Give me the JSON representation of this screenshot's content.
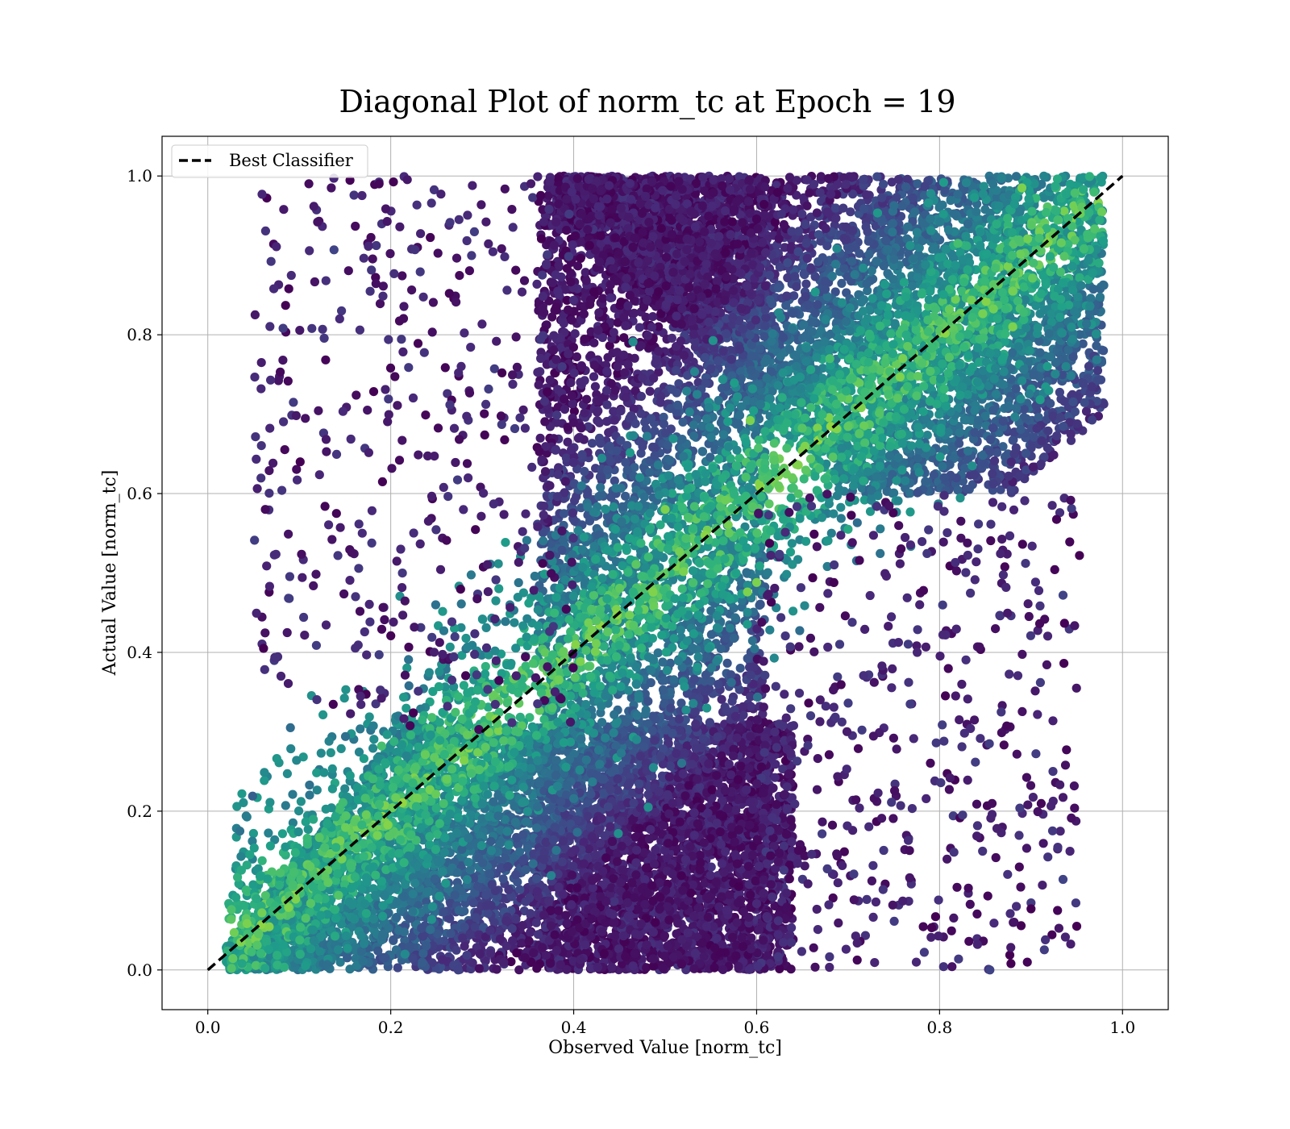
{
  "chart_data": {
    "type": "scatter",
    "title": "Diagonal Plot of norm_tc at Epoch = 19",
    "xlabel": "Observed Value [norm_tc]",
    "ylabel": "Actual Value [norm_tc]",
    "xlim": [
      -0.05,
      1.05
    ],
    "ylim": [
      -0.05,
      1.05
    ],
    "xticks": [
      0.0,
      0.2,
      0.4,
      0.6,
      0.8,
      1.0
    ],
    "yticks": [
      0.0,
      0.2,
      0.4,
      0.6,
      0.8,
      1.0
    ],
    "xtick_labels": [
      "0.0",
      "0.2",
      "0.4",
      "0.6",
      "0.8",
      "1.0"
    ],
    "ytick_labels": [
      "0.0",
      "0.2",
      "0.4",
      "0.6",
      "0.8",
      "1.0"
    ],
    "grid": true,
    "colormap": "viridis",
    "legend": {
      "location": "upper-left",
      "entries": [
        "Best Classifier"
      ]
    },
    "reference_line": {
      "name": "Best Classifier",
      "style": "dashed",
      "color": "#000000",
      "x": [
        0.0,
        1.0
      ],
      "y": [
        0.0,
        1.0
      ]
    },
    "density_summary": {
      "note_regions": [
        {
          "x_range": [
            0.02,
            0.6
          ],
          "y_range": [
            0.0,
            0.3
          ],
          "density": "very dense"
        },
        {
          "x_range": [
            0.4,
            0.98
          ],
          "y_range": [
            0.6,
            1.0
          ],
          "density": "very dense"
        },
        {
          "x_range": [
            0.4,
            0.6
          ],
          "y_range": [
            0.0,
            1.0
          ],
          "density": "dense band"
        }
      ]
    },
    "series": [
      {
        "kind": "scatter",
        "points_sample": [
          [
            0.085,
            0.837,
            0.0
          ],
          [
            0.075,
            0.911,
            0.1
          ],
          [
            0.12,
            0.942,
            0.05
          ],
          [
            0.138,
            0.907,
            0.2
          ],
          [
            0.135,
            0.985,
            0.05
          ],
          [
            0.081,
            0.604,
            0.15
          ],
          [
            0.088,
            0.549,
            0.05
          ],
          [
            0.101,
            0.64,
            0.0
          ],
          [
            0.061,
            0.405,
            0.0
          ],
          [
            0.049,
            0.219,
            0.3
          ],
          [
            0.068,
            0.211,
            0.5
          ],
          [
            0.08,
            0.37,
            0.1
          ],
          [
            0.95,
            0.055,
            0.0
          ],
          [
            0.9,
            0.077,
            0.0
          ],
          [
            0.935,
            0.114,
            0.2
          ],
          [
            0.957,
            0.739,
            0.2
          ],
          [
            0.935,
            0.472,
            0.2
          ],
          [
            0.953,
            0.522,
            0.0
          ],
          [
            0.878,
            0.008,
            0.0
          ],
          [
            0.855,
            0.0,
            0.2
          ],
          [
            0.6,
            0.488,
            0.8
          ],
          [
            0.59,
            0.476,
            0.8
          ],
          [
            0.593,
            0.692,
            0.8
          ],
          [
            0.5,
            0.58,
            0.8
          ],
          [
            0.33,
            0.22,
            0.6
          ],
          [
            0.245,
            0.318,
            0.7
          ],
          [
            0.19,
            0.282,
            0.7
          ],
          [
            0.88,
            0.81,
            0.8
          ],
          [
            0.89,
            0.985,
            0.8
          ],
          [
            0.82,
            0.915,
            0.7
          ],
          [
            0.68,
            0.77,
            0.7
          ],
          [
            0.7,
            0.555,
            0.6
          ]
        ]
      }
    ]
  }
}
